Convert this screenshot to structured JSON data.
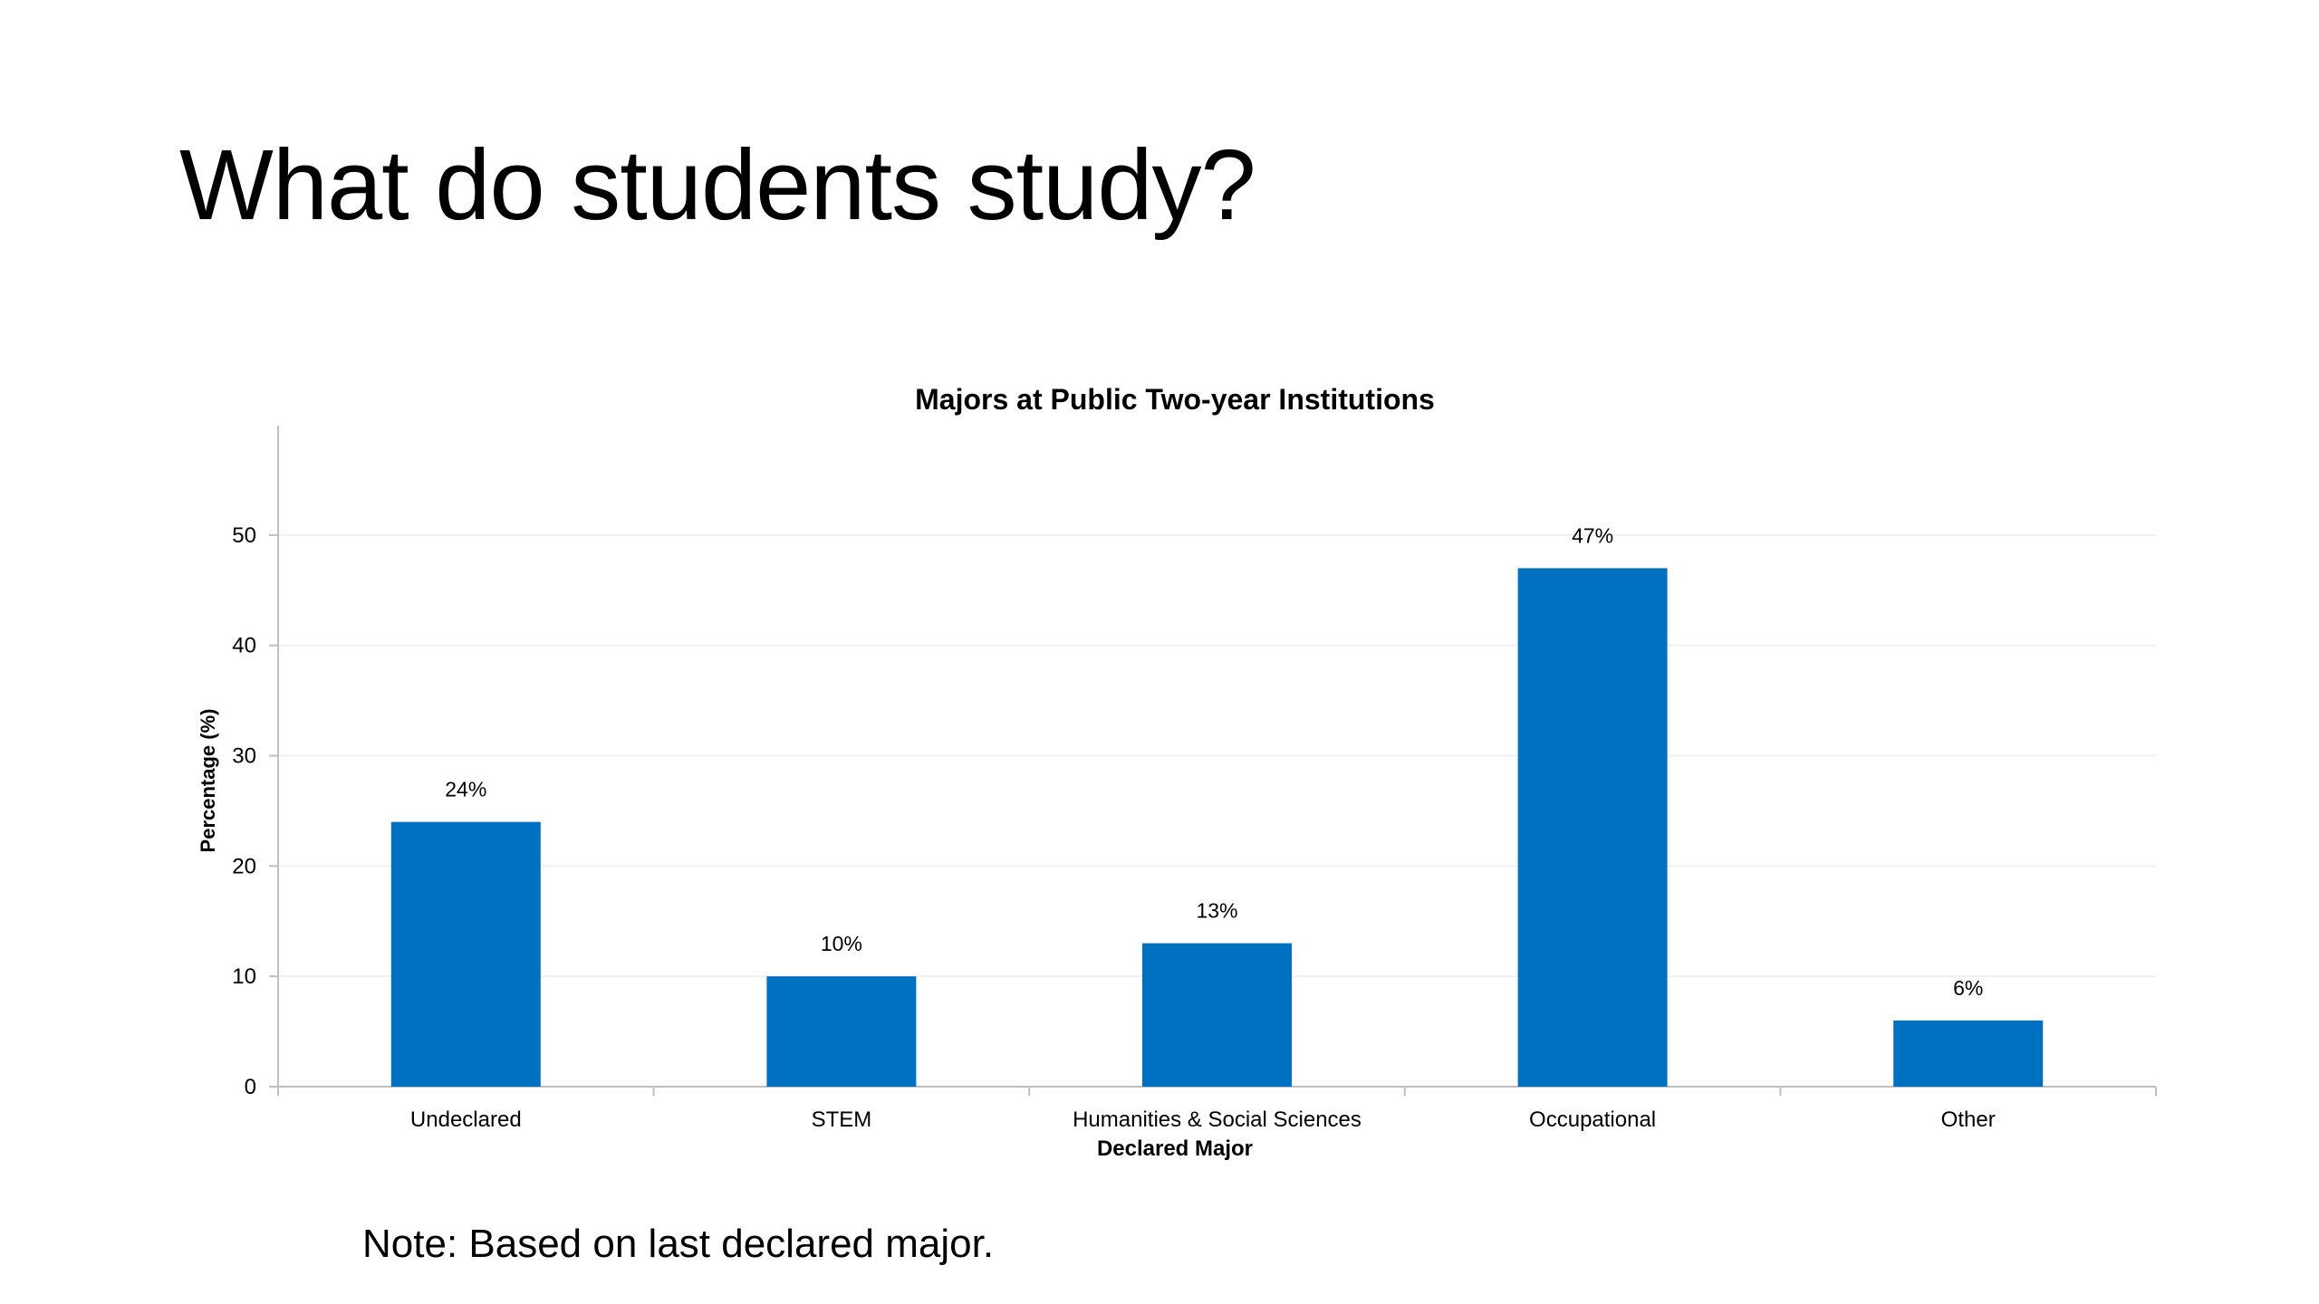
{
  "slide": {
    "title": "What do students study?",
    "note": "Note: Based on last declared major."
  },
  "colors": {
    "bar": "#0070C0",
    "axis": "#bfbfbf",
    "grid": "#f0f0f0",
    "text": "#000000"
  },
  "chart_data": {
    "type": "bar",
    "title": "Majors at Public Two-year Institutions",
    "xlabel": "Declared Major",
    "ylabel": "Percentage (%)",
    "categories": [
      "Undeclared",
      "STEM",
      "Humanities & Social Sciences",
      "Occupational",
      "Other"
    ],
    "values": [
      24,
      10,
      13,
      47,
      6
    ],
    "data_labels": [
      "24%",
      "10%",
      "13%",
      "47%",
      "6%"
    ],
    "ylim": [
      0,
      55
    ],
    "yticks": [
      0,
      10,
      20,
      30,
      40,
      50
    ],
    "grid": true,
    "legend": "none"
  }
}
